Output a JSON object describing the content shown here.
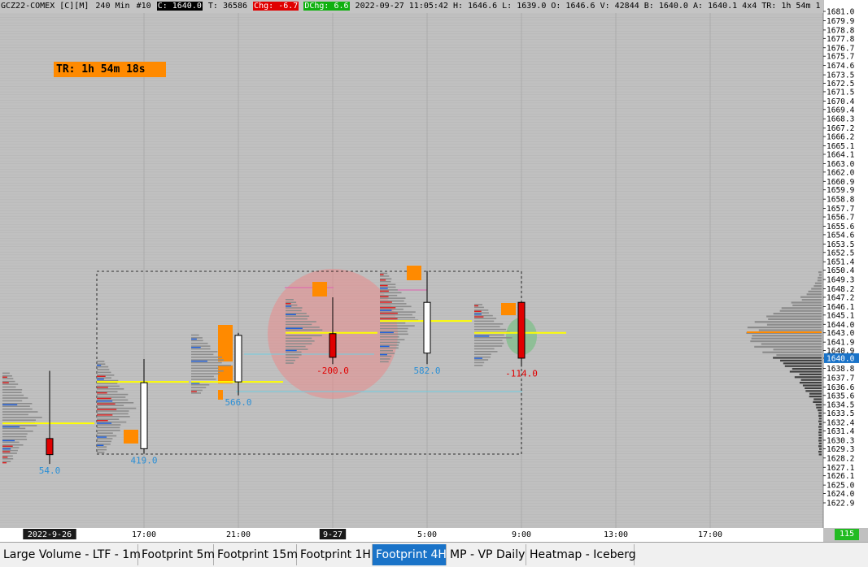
{
  "header": {
    "symbol": "GCZ22-COMEX [C][M]",
    "interval": "240 Min",
    "bar_number": "#10",
    "close_label": "C: 1640.0",
    "trades_label": "T: 36586",
    "change_label": "Chg: -6.7",
    "dchange_label": "DChg: 6.6",
    "info": "2022-09-27 11:05:42 H: 1646.6 L: 1639.0 O: 1646.6 V: 42844 B: 1640.0 A: 1640.1 4x4 TR: 1h 54m 1"
  },
  "timer_box": "TR: 1h 54m 18s",
  "price_axis": {
    "labels": [
      "1681.0",
      "1679.9",
      "1678.8",
      "1677.8",
      "1676.7",
      "1675.7",
      "1674.6",
      "1673.5",
      "1672.5",
      "1671.5",
      "1670.4",
      "1669.4",
      "1668.3",
      "1667.2",
      "1666.2",
      "1665.1",
      "1664.1",
      "1663.0",
      "1662.0",
      "1660.9",
      "1659.9",
      "1658.8",
      "1657.7",
      "1656.7",
      "1655.6",
      "1654.6",
      "1653.5",
      "1652.5",
      "1651.4",
      "1650.4",
      "1649.3",
      "1648.2",
      "1647.2",
      "1646.1",
      "1645.1",
      "1644.0",
      "1643.0",
      "1641.9",
      "1640.9",
      "1640.0",
      "1638.8",
      "1637.7",
      "1636.6",
      "1635.6",
      "1634.5",
      "1633.5",
      "1632.4",
      "1631.4",
      "1630.3",
      "1629.3",
      "1628.2",
      "1627.1",
      "1626.1",
      "1625.0",
      "1624.0",
      "1622.9"
    ],
    "current": "1640.0",
    "top": 1681.0,
    "bottom": 1622.9
  },
  "time_axis": [
    {
      "label": "2022-9-26",
      "highlight": true
    },
    {
      "label": "17:00",
      "highlight": false
    },
    {
      "label": "21:00",
      "highlight": false
    },
    {
      "label": "9-27",
      "highlight": true
    },
    {
      "label": "5:00",
      "highlight": false
    },
    {
      "label": "9:00",
      "highlight": false
    },
    {
      "label": "13:00",
      "highlight": false
    },
    {
      "label": "17:00",
      "highlight": false
    }
  ],
  "chart_data": {
    "type": "candlestick",
    "candles": [
      {
        "open": 1630.5,
        "close": 1628.6,
        "high": 1638.5,
        "low": 1627.5,
        "delta": "54.0",
        "poc": 1632.3
      },
      {
        "open": 1629.3,
        "close": 1637.1,
        "high": 1639.9,
        "low": 1628.7,
        "delta": "419.0",
        "poc": 1637.2
      },
      {
        "open": 1637.2,
        "close": 1642.7,
        "high": 1643.0,
        "low": 1635.6,
        "delta": "566.0",
        "poc": 1637.2
      },
      {
        "open": 1642.9,
        "close": 1640.1,
        "high": 1647.2,
        "low": 1639.3,
        "delta": "-200.0",
        "poc": 1643.0
      },
      {
        "open": 1640.6,
        "close": 1646.6,
        "high": 1650.3,
        "low": 1639.3,
        "delta": "582.0",
        "poc": 1644.4
      },
      {
        "open": 1646.6,
        "close": 1640.0,
        "high": 1646.6,
        "low": 1639.0,
        "delta": "-114.0",
        "poc": 1643.0
      }
    ]
  },
  "tabs": [
    "Large Volume - LTF - 1m",
    "Footprint 5m",
    "Footprint 15m",
    "Footprint 1H",
    "Footprint 4H",
    "MP - VP Daily",
    "Heatmap - Iceberg"
  ],
  "active_tab": "Footprint 4H",
  "counter": "115",
  "colors": {
    "bull": "#ffffff",
    "bear": "#e00000",
    "poc": "#ffff00",
    "highlight_box": "#ff8a00",
    "axis_bg": "#ffffff"
  }
}
